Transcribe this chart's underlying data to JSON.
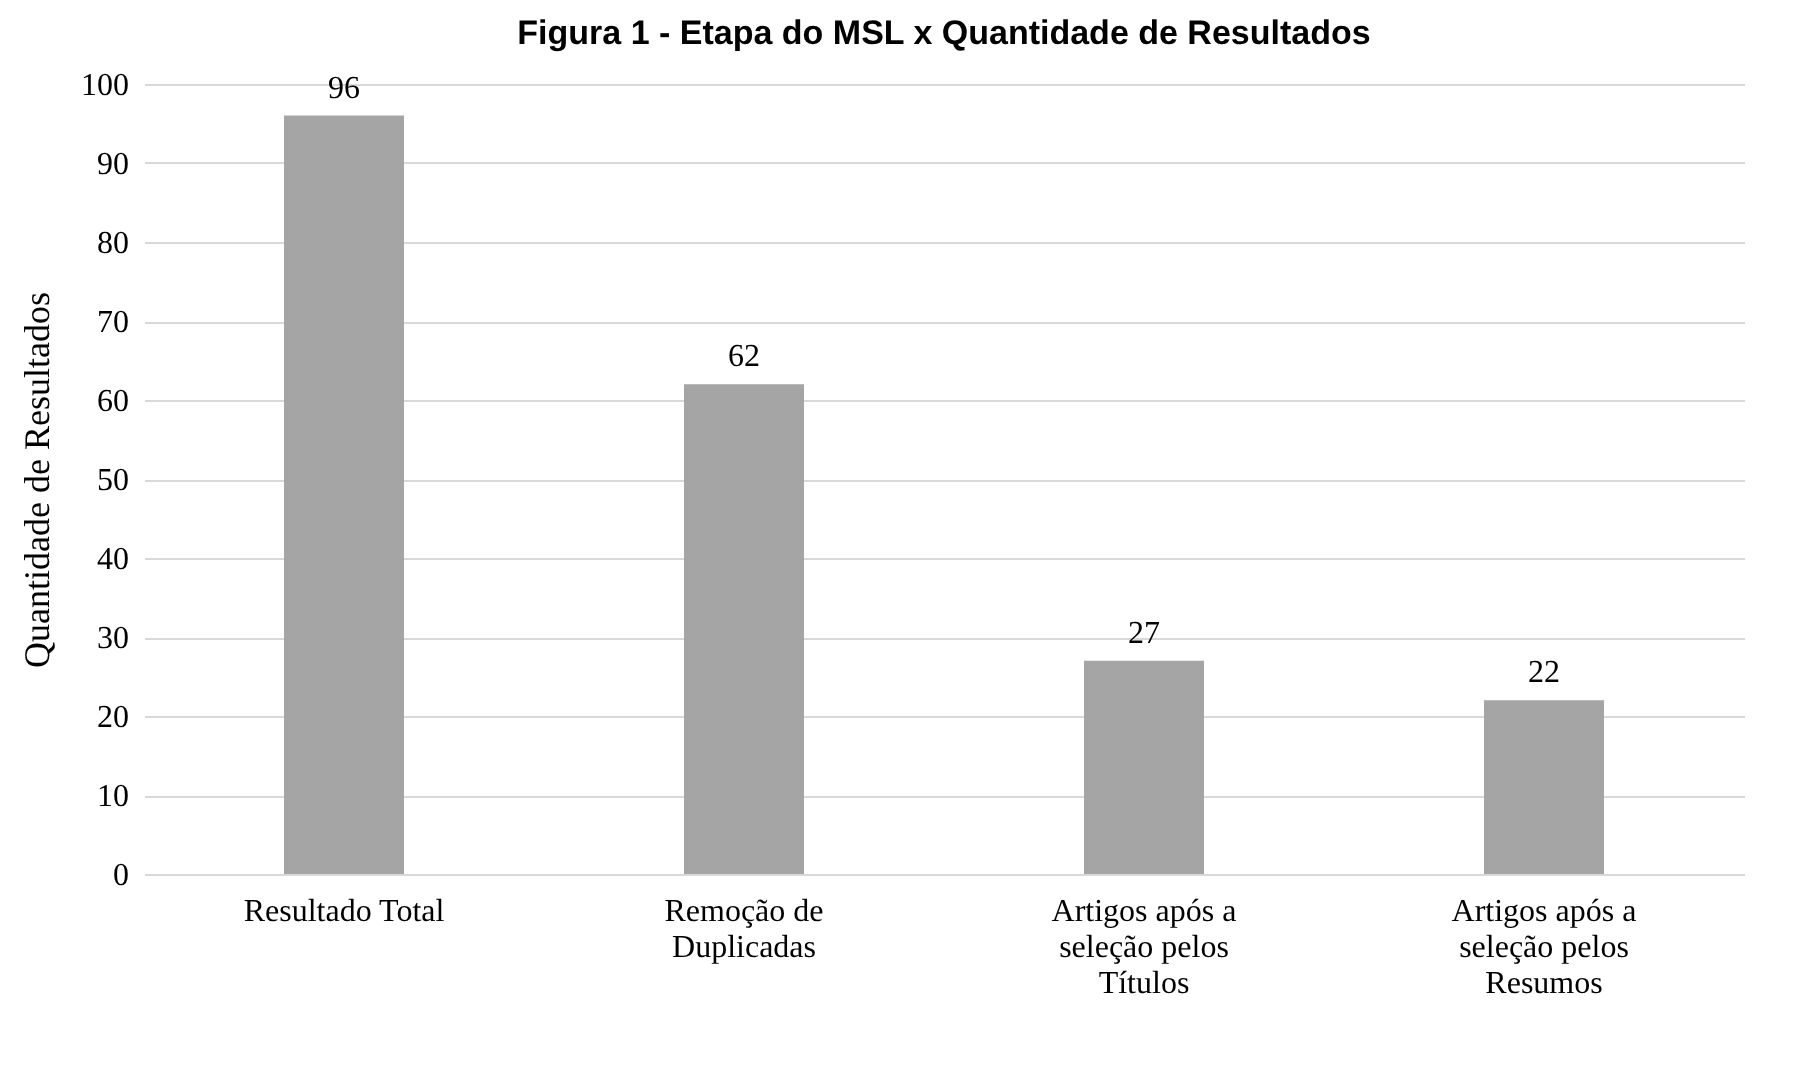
{
  "chart_data": {
    "type": "bar",
    "title": "Figura 1 - Etapa do MSL x Quantidade de Resultados",
    "ylabel": "Quantidade de Resultados",
    "categories": [
      "Resultado Total",
      "Remoção de Duplicadas",
      "Artigos após a seleção pelos Títulos",
      "Artigos após a seleção pelos Resumos"
    ],
    "values": [
      96,
      62,
      27,
      22
    ],
    "color": "#a5a5a5",
    "ylim": [
      0,
      100
    ],
    "yticks": [
      0,
      10,
      20,
      30,
      40,
      50,
      60,
      70,
      80,
      90,
      100
    ],
    "grid": "y",
    "data_labels": true
  }
}
